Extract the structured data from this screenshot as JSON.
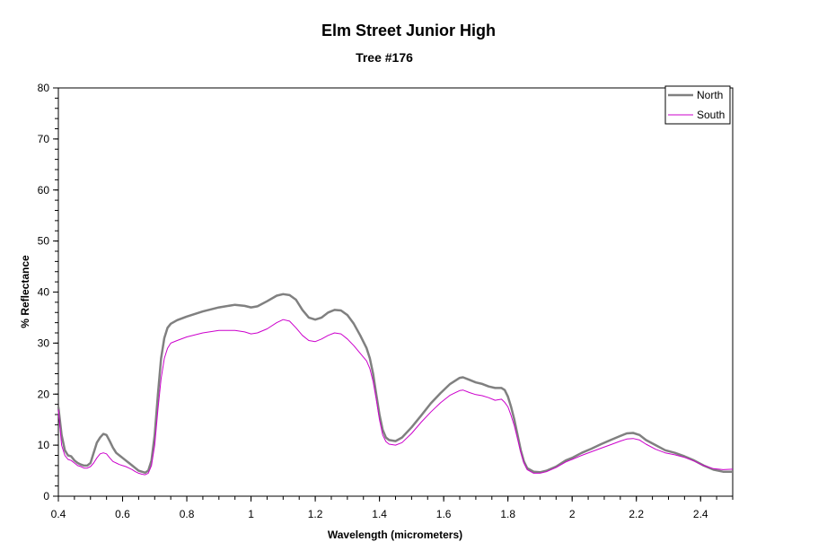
{
  "chart_data": {
    "type": "line",
    "title": "Elm Street Junior High",
    "subtitle": "Tree #176",
    "xlabel": "Wavelength (micrometers)",
    "ylabel": "% Reflectance",
    "xlim": [
      0.4,
      2.5
    ],
    "ylim": [
      0,
      80
    ],
    "x_ticks": [
      "0.4",
      "0.6",
      "0.8",
      "1",
      "1.2",
      "1.4",
      "1.6",
      "1.8",
      "2",
      "2.2",
      "2.4"
    ],
    "y_ticks": [
      "0",
      "10",
      "20",
      "30",
      "40",
      "50",
      "60",
      "70",
      "80"
    ],
    "grid": false,
    "legend_position": "top-right",
    "series": [
      {
        "name": "North",
        "color": "#808080",
        "points": [
          [
            0.4,
            17.5
          ],
          [
            0.41,
            12.0
          ],
          [
            0.42,
            9.0
          ],
          [
            0.43,
            8.0
          ],
          [
            0.44,
            7.8
          ],
          [
            0.45,
            7.0
          ],
          [
            0.46,
            6.5
          ],
          [
            0.47,
            6.2
          ],
          [
            0.48,
            6.0
          ],
          [
            0.49,
            6.0
          ],
          [
            0.5,
            6.5
          ],
          [
            0.51,
            8.5
          ],
          [
            0.52,
            10.5
          ],
          [
            0.53,
            11.5
          ],
          [
            0.54,
            12.2
          ],
          [
            0.55,
            12.0
          ],
          [
            0.56,
            10.8
          ],
          [
            0.57,
            9.5
          ],
          [
            0.58,
            8.5
          ],
          [
            0.59,
            8.0
          ],
          [
            0.6,
            7.5
          ],
          [
            0.61,
            7.0
          ],
          [
            0.62,
            6.5
          ],
          [
            0.63,
            6.0
          ],
          [
            0.64,
            5.5
          ],
          [
            0.65,
            5.0
          ],
          [
            0.66,
            4.8
          ],
          [
            0.67,
            4.6
          ],
          [
            0.68,
            5.0
          ],
          [
            0.69,
            7.0
          ],
          [
            0.7,
            12.0
          ],
          [
            0.71,
            20.0
          ],
          [
            0.72,
            27.0
          ],
          [
            0.73,
            31.0
          ],
          [
            0.74,
            33.0
          ],
          [
            0.75,
            33.8
          ],
          [
            0.77,
            34.5
          ],
          [
            0.8,
            35.2
          ],
          [
            0.85,
            36.2
          ],
          [
            0.9,
            37.0
          ],
          [
            0.95,
            37.5
          ],
          [
            0.98,
            37.3
          ],
          [
            1.0,
            37.0
          ],
          [
            1.02,
            37.2
          ],
          [
            1.05,
            38.2
          ],
          [
            1.08,
            39.3
          ],
          [
            1.1,
            39.6
          ],
          [
            1.12,
            39.4
          ],
          [
            1.14,
            38.5
          ],
          [
            1.16,
            36.5
          ],
          [
            1.18,
            35.0
          ],
          [
            1.2,
            34.6
          ],
          [
            1.22,
            35.0
          ],
          [
            1.24,
            36.0
          ],
          [
            1.26,
            36.5
          ],
          [
            1.28,
            36.4
          ],
          [
            1.3,
            35.5
          ],
          [
            1.32,
            33.8
          ],
          [
            1.34,
            31.5
          ],
          [
            1.36,
            29.0
          ],
          [
            1.37,
            27.0
          ],
          [
            1.38,
            24.0
          ],
          [
            1.39,
            20.0
          ],
          [
            1.4,
            16.0
          ],
          [
            1.41,
            13.0
          ],
          [
            1.42,
            11.5
          ],
          [
            1.43,
            11.0
          ],
          [
            1.45,
            10.8
          ],
          [
            1.47,
            11.5
          ],
          [
            1.5,
            13.5
          ],
          [
            1.53,
            15.8
          ],
          [
            1.56,
            18.2
          ],
          [
            1.59,
            20.2
          ],
          [
            1.62,
            22.0
          ],
          [
            1.65,
            23.2
          ],
          [
            1.66,
            23.3
          ],
          [
            1.68,
            22.8
          ],
          [
            1.7,
            22.3
          ],
          [
            1.72,
            22.0
          ],
          [
            1.74,
            21.5
          ],
          [
            1.76,
            21.2
          ],
          [
            1.78,
            21.2
          ],
          [
            1.79,
            20.8
          ],
          [
            1.8,
            19.5
          ],
          [
            1.81,
            17.5
          ],
          [
            1.82,
            15.0
          ],
          [
            1.83,
            12.0
          ],
          [
            1.84,
            9.0
          ],
          [
            1.85,
            6.8
          ],
          [
            1.86,
            5.5
          ],
          [
            1.88,
            4.8
          ],
          [
            1.9,
            4.7
          ],
          [
            1.92,
            5.0
          ],
          [
            1.95,
            5.8
          ],
          [
            1.98,
            7.0
          ],
          [
            2.0,
            7.5
          ],
          [
            2.03,
            8.5
          ],
          [
            2.06,
            9.3
          ],
          [
            2.09,
            10.2
          ],
          [
            2.12,
            11.0
          ],
          [
            2.15,
            11.8
          ],
          [
            2.17,
            12.3
          ],
          [
            2.19,
            12.4
          ],
          [
            2.21,
            12.0
          ],
          [
            2.23,
            11.0
          ],
          [
            2.26,
            10.0
          ],
          [
            2.29,
            9.0
          ],
          [
            2.32,
            8.5
          ],
          [
            2.35,
            7.8
          ],
          [
            2.38,
            7.0
          ],
          [
            2.41,
            6.0
          ],
          [
            2.44,
            5.2
          ],
          [
            2.47,
            4.8
          ],
          [
            2.5,
            4.8
          ]
        ]
      },
      {
        "name": "South",
        "color": "#cc00cc",
        "points": [
          [
            0.4,
            17.0
          ],
          [
            0.41,
            10.0
          ],
          [
            0.42,
            8.0
          ],
          [
            0.43,
            7.2
          ],
          [
            0.44,
            7.0
          ],
          [
            0.45,
            6.5
          ],
          [
            0.46,
            6.0
          ],
          [
            0.47,
            5.8
          ],
          [
            0.48,
            5.5
          ],
          [
            0.49,
            5.5
          ],
          [
            0.5,
            5.8
          ],
          [
            0.51,
            6.5
          ],
          [
            0.52,
            7.5
          ],
          [
            0.53,
            8.3
          ],
          [
            0.54,
            8.5
          ],
          [
            0.55,
            8.3
          ],
          [
            0.56,
            7.5
          ],
          [
            0.57,
            6.8
          ],
          [
            0.58,
            6.5
          ],
          [
            0.59,
            6.2
          ],
          [
            0.6,
            6.0
          ],
          [
            0.61,
            5.8
          ],
          [
            0.62,
            5.5
          ],
          [
            0.63,
            5.2
          ],
          [
            0.64,
            4.8
          ],
          [
            0.65,
            4.5
          ],
          [
            0.66,
            4.3
          ],
          [
            0.67,
            4.2
          ],
          [
            0.68,
            4.5
          ],
          [
            0.69,
            6.0
          ],
          [
            0.7,
            10.0
          ],
          [
            0.71,
            17.0
          ],
          [
            0.72,
            23.0
          ],
          [
            0.73,
            27.0
          ],
          [
            0.74,
            29.0
          ],
          [
            0.75,
            30.0
          ],
          [
            0.77,
            30.5
          ],
          [
            0.8,
            31.2
          ],
          [
            0.85,
            32.0
          ],
          [
            0.9,
            32.5
          ],
          [
            0.95,
            32.5
          ],
          [
            0.98,
            32.2
          ],
          [
            1.0,
            31.8
          ],
          [
            1.02,
            32.0
          ],
          [
            1.05,
            32.8
          ],
          [
            1.08,
            34.0
          ],
          [
            1.1,
            34.6
          ],
          [
            1.12,
            34.3
          ],
          [
            1.14,
            33.0
          ],
          [
            1.16,
            31.5
          ],
          [
            1.18,
            30.5
          ],
          [
            1.2,
            30.3
          ],
          [
            1.22,
            30.8
          ],
          [
            1.24,
            31.5
          ],
          [
            1.26,
            32.0
          ],
          [
            1.28,
            31.8
          ],
          [
            1.3,
            30.8
          ],
          [
            1.32,
            29.5
          ],
          [
            1.34,
            28.0
          ],
          [
            1.36,
            26.5
          ],
          [
            1.37,
            25.0
          ],
          [
            1.38,
            22.5
          ],
          [
            1.39,
            19.0
          ],
          [
            1.4,
            15.0
          ],
          [
            1.41,
            12.0
          ],
          [
            1.42,
            10.7
          ],
          [
            1.43,
            10.2
          ],
          [
            1.45,
            10.0
          ],
          [
            1.47,
            10.5
          ],
          [
            1.5,
            12.3
          ],
          [
            1.53,
            14.5
          ],
          [
            1.56,
            16.5
          ],
          [
            1.59,
            18.3
          ],
          [
            1.62,
            19.8
          ],
          [
            1.65,
            20.7
          ],
          [
            1.66,
            20.8
          ],
          [
            1.68,
            20.3
          ],
          [
            1.7,
            19.9
          ],
          [
            1.72,
            19.7
          ],
          [
            1.74,
            19.3
          ],
          [
            1.76,
            18.8
          ],
          [
            1.78,
            19.0
          ],
          [
            1.79,
            18.4
          ],
          [
            1.8,
            17.5
          ],
          [
            1.81,
            15.8
          ],
          [
            1.82,
            13.8
          ],
          [
            1.83,
            11.2
          ],
          [
            1.84,
            8.6
          ],
          [
            1.85,
            6.5
          ],
          [
            1.86,
            5.2
          ],
          [
            1.88,
            4.5
          ],
          [
            1.9,
            4.5
          ],
          [
            1.92,
            4.8
          ],
          [
            1.95,
            5.6
          ],
          [
            1.98,
            6.7
          ],
          [
            2.0,
            7.2
          ],
          [
            2.03,
            8.0
          ],
          [
            2.06,
            8.7
          ],
          [
            2.09,
            9.4
          ],
          [
            2.12,
            10.1
          ],
          [
            2.15,
            10.8
          ],
          [
            2.17,
            11.2
          ],
          [
            2.19,
            11.3
          ],
          [
            2.21,
            11.0
          ],
          [
            2.23,
            10.2
          ],
          [
            2.26,
            9.2
          ],
          [
            2.29,
            8.5
          ],
          [
            2.32,
            8.1
          ],
          [
            2.35,
            7.6
          ],
          [
            2.38,
            6.9
          ],
          [
            2.41,
            6.0
          ],
          [
            2.44,
            5.4
          ],
          [
            2.47,
            5.2
          ],
          [
            2.5,
            5.3
          ]
        ]
      }
    ]
  }
}
